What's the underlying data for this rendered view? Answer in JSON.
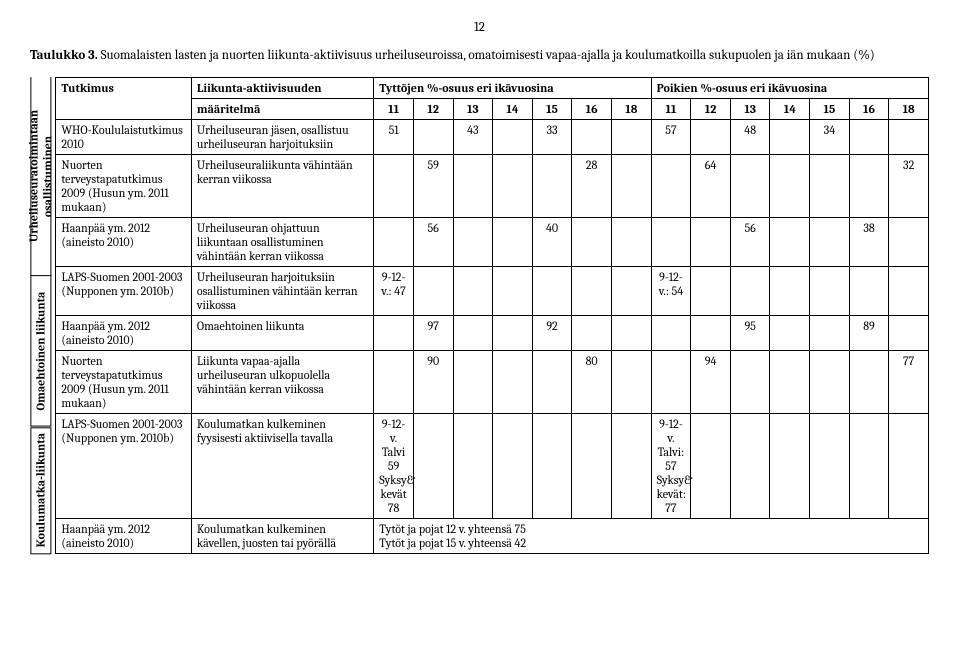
{
  "page_number": "12",
  "caption_label": "Taulukko 3.",
  "caption_text": "Suomalaisten lasten ja nuorten liikunta-aktiivisuus urheiluseuroissa, omatoimisesti vapaa-ajalla ja koulumatkoilla sukupuolen ja iän mukaan (%)",
  "side_labels": {
    "group1": "Urheiluseuratoimintaan osallistuminen",
    "group2": "Omaehtoinen liikunta",
    "group3": "Koulumatka-liikunta"
  },
  "headers": {
    "study": "Tutkimus",
    "definition_l1": "Liikunta-aktiivisuuden",
    "definition_l2": "määritelmä",
    "girls": "Tyttöjen %-osuus eri ikävuosina",
    "boys": "Poikien %-osuus eri ikävuosina",
    "ages": [
      "11",
      "12",
      "13",
      "14",
      "15",
      "16",
      "18"
    ]
  },
  "rows": [
    {
      "study": "WHO-Koululaistutkimus 2010",
      "def": "Urheiluseuran jäsen, osallistuu urheiluseuran harjoituksiin",
      "g": [
        "51",
        "",
        "43",
        "",
        "33",
        "",
        ""
      ],
      "b": [
        "57",
        "",
        "48",
        "",
        "34",
        "",
        ""
      ]
    },
    {
      "study": "Nuorten terveystapatutkimus 2009 (Husun ym. 2011 mukaan)",
      "def": "Urheiluseuraliikunta vähintään kerran viikossa",
      "g": [
        "",
        "59",
        "",
        "",
        "",
        "28",
        ""
      ],
      "b": [
        "",
        "64",
        "",
        "",
        "",
        "",
        "32"
      ]
    },
    {
      "study": "Haanpää ym. 2012 (aineisto 2010)",
      "def": "Urheiluseuran ohjattuun liikuntaan osallistuminen vähintään kerran viikossa",
      "g": [
        "",
        "56",
        "",
        "",
        "40",
        "",
        ""
      ],
      "b": [
        "",
        "",
        "56",
        "",
        "",
        "38",
        ""
      ]
    },
    {
      "study": "LAPS-Suomen 2001-2003 (Nupponen ym. 2010b)",
      "def": "Urheiluseuran harjoituksiin osallistuminen vähintään kerran viikossa",
      "g": [
        "9-12-v.: 47",
        "",
        "",
        "",
        "",
        "",
        ""
      ],
      "b": [
        "9-12-v.: 54",
        "",
        "",
        "",
        "",
        "",
        ""
      ]
    },
    {
      "study": "Haanpää ym. 2012 (aineisto 2010)",
      "def": "Omaehtoinen liikunta",
      "g": [
        "",
        "97",
        "",
        "",
        "92",
        "",
        ""
      ],
      "b": [
        "",
        "",
        "95",
        "",
        "",
        "89",
        ""
      ]
    },
    {
      "study": "Nuorten terveystapatutkimus 2009 (Husun ym. 2011 mukaan)",
      "def": "Liikunta vapaa-ajalla urheiluseuran ulkopuolella vähintään kerran viikossa",
      "g": [
        "",
        "90",
        "",
        "",
        "",
        "80",
        ""
      ],
      "b": [
        "",
        "94",
        "",
        "",
        "",
        "",
        "77"
      ]
    },
    {
      "study": "LAPS-Suomen 2001-2003 (Nupponen ym. 2010b)",
      "def": "Koulumatkan kulkeminen fyysisesti aktiivisella tavalla",
      "g": [
        "9-12-v. Talvi 59 Syksy& kevät 78",
        "",
        "",
        "",
        "",
        "",
        ""
      ],
      "b": [
        "9-12-v. Talvi: 57 Syksy& kevät: 77",
        "",
        "",
        "",
        "",
        "",
        ""
      ]
    },
    {
      "study": "Haanpää ym. 2012 (aineisto 2010)",
      "def": "Koulumatkan kulkeminen kävellen, juosten tai pyörällä",
      "full_girls": "Tytöt ja pojat 12 v. yhteensä 75\nTytöt ja pojat 15 v. yhteensä 42"
    }
  ]
}
